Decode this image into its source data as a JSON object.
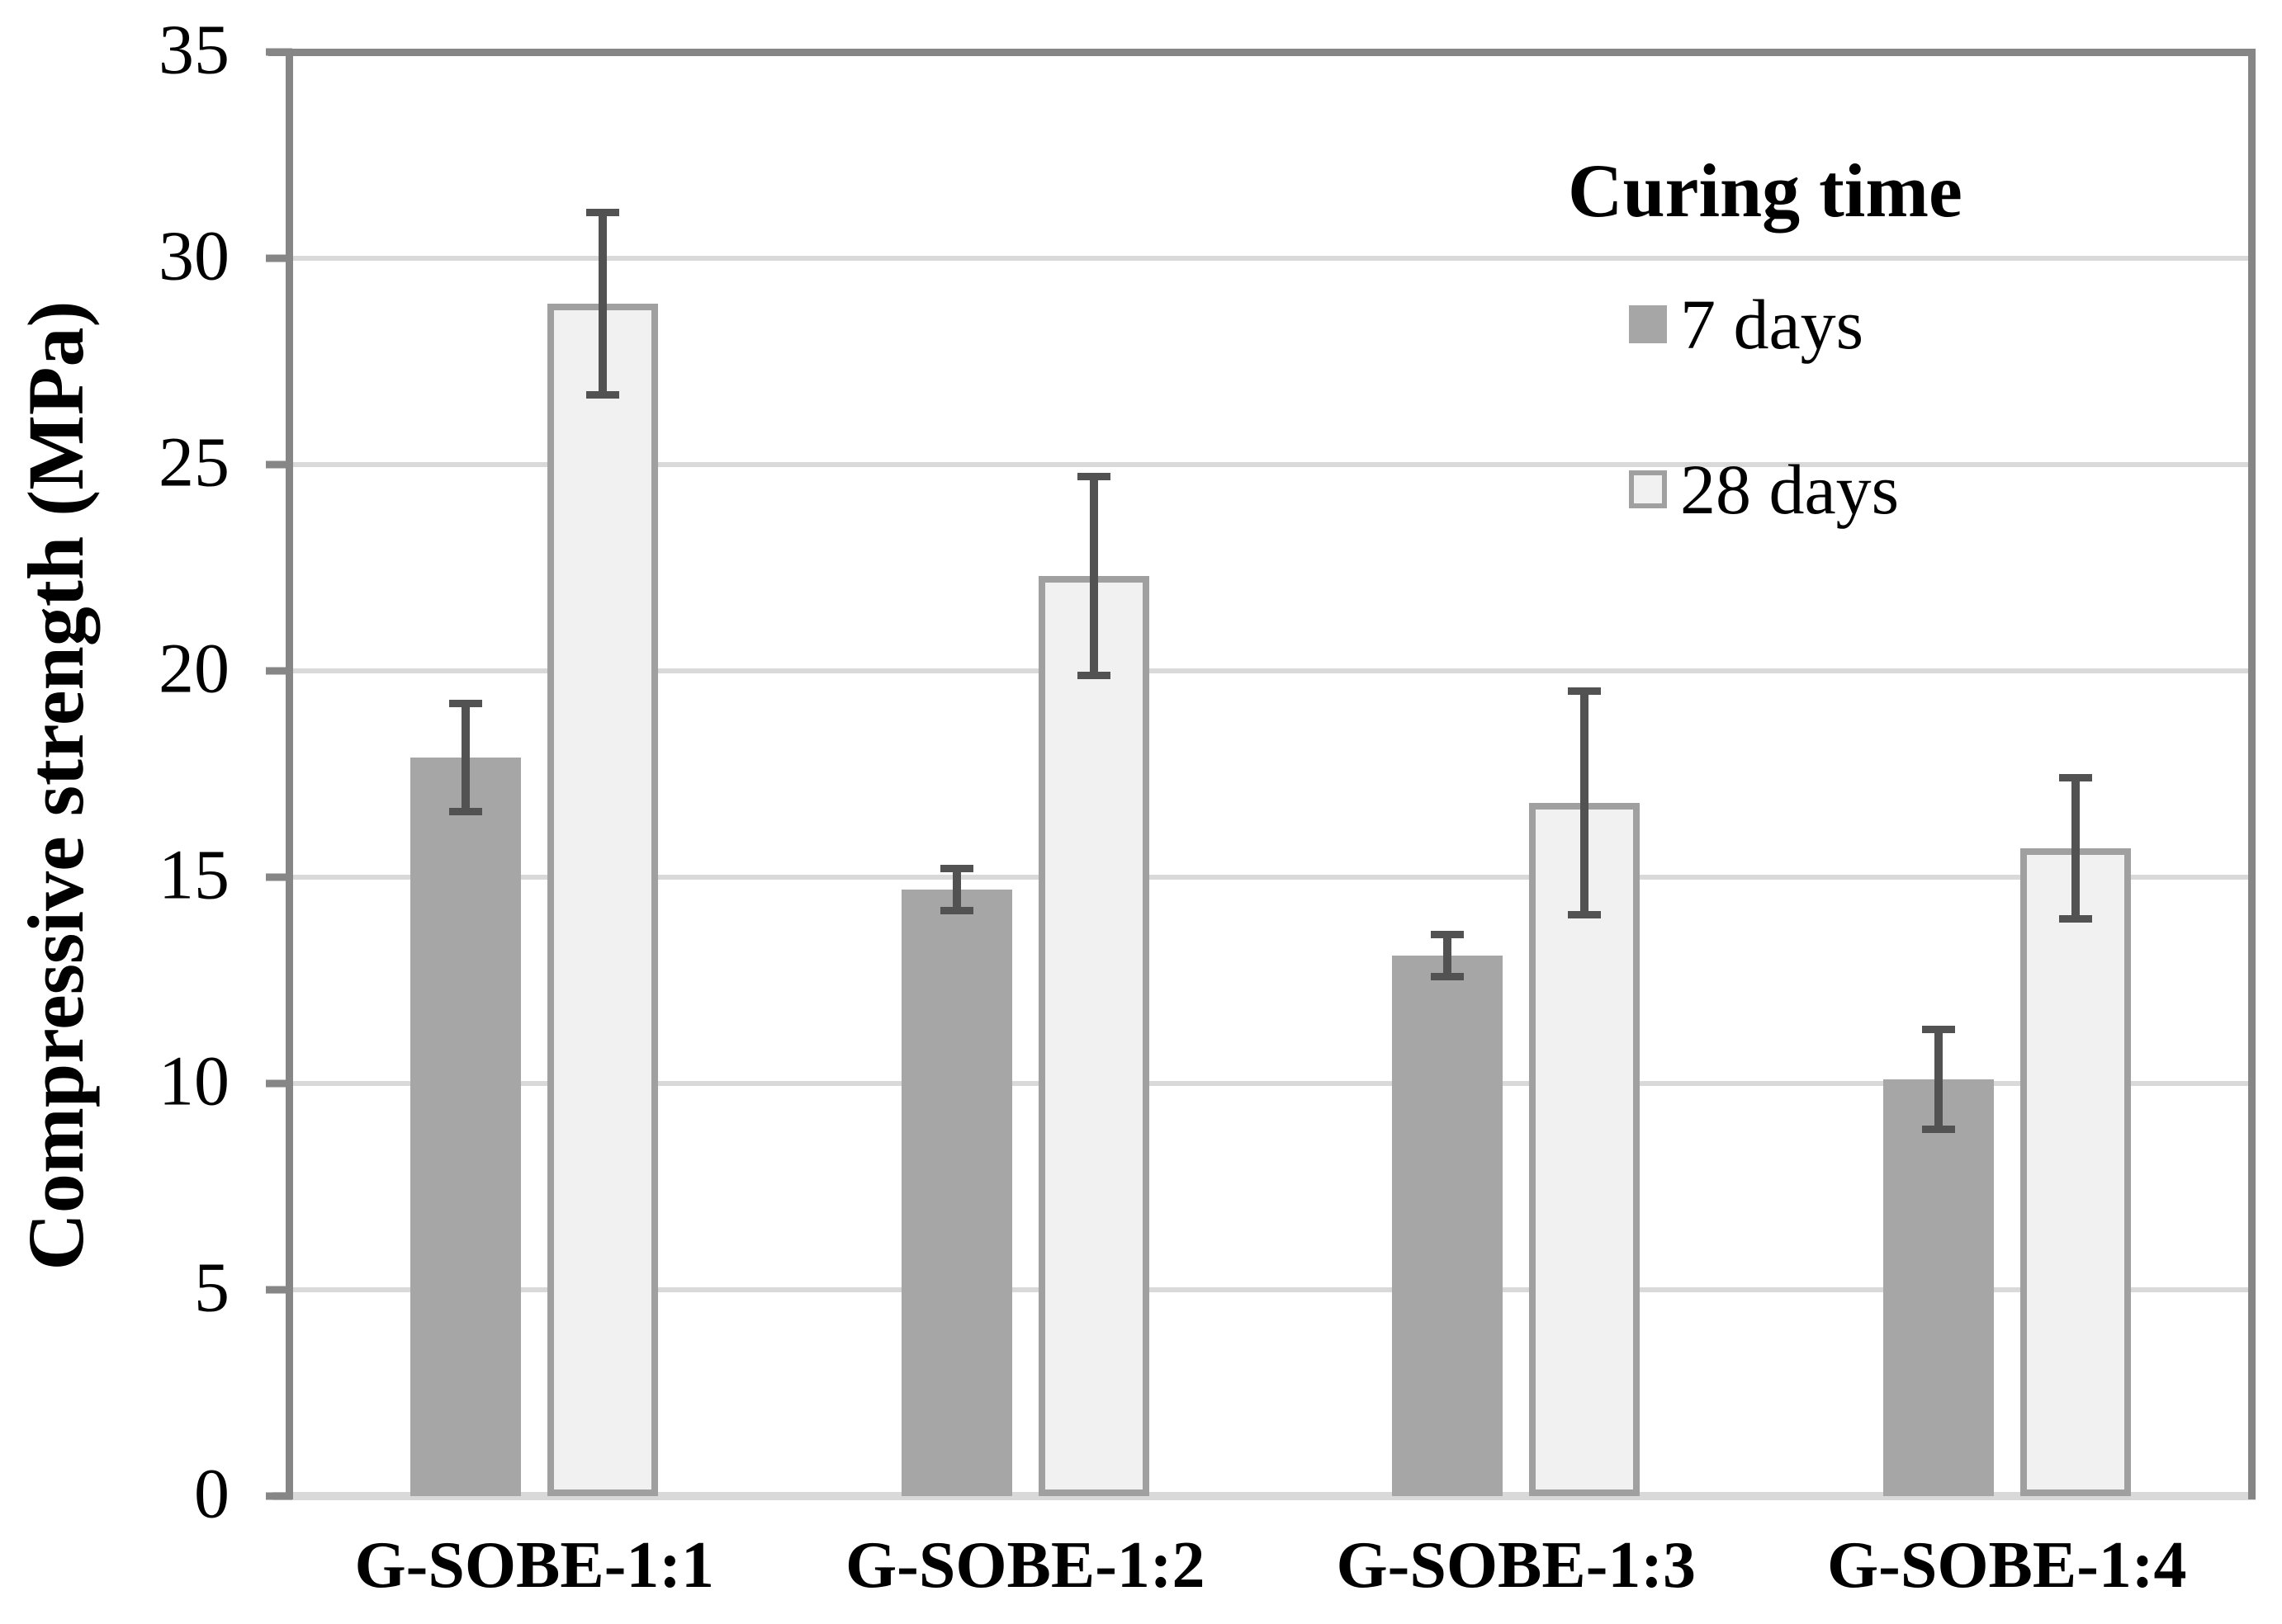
{
  "chart_data": {
    "type": "bar",
    "title": "",
    "ylabel": "Compressive strength (MPa)",
    "xlabel": "",
    "ylim": [
      0,
      35
    ],
    "yticks": [
      0,
      5,
      10,
      15,
      20,
      25,
      30,
      35
    ],
    "grid": true,
    "legend_title": "Curing time",
    "legend_position": "top-right-inside",
    "categories": [
      "G-SOBE-1:1",
      "G-SOBE-1:2",
      "G-SOBE-1:3",
      "G-SOBE-1:4"
    ],
    "series": [
      {
        "name": "7 days",
        "fill": "#a6a6a6",
        "border": "#a6a6a6",
        "values": [
          17.9,
          14.7,
          13.1,
          10.1
        ],
        "errors": [
          1.4,
          0.6,
          0.6,
          1.3
        ]
      },
      {
        "name": "28 days",
        "fill": "#f1f1f1",
        "border": "#a0a0a0",
        "values": [
          28.9,
          22.3,
          16.8,
          15.7
        ],
        "errors": [
          2.3,
          2.5,
          2.8,
          1.8
        ]
      }
    ],
    "colors": {
      "error_bar": "#525252",
      "gridline": "#d9d9d9",
      "axis": "#868686",
      "baseline": "#d9d9d9",
      "text": "#000000"
    }
  }
}
